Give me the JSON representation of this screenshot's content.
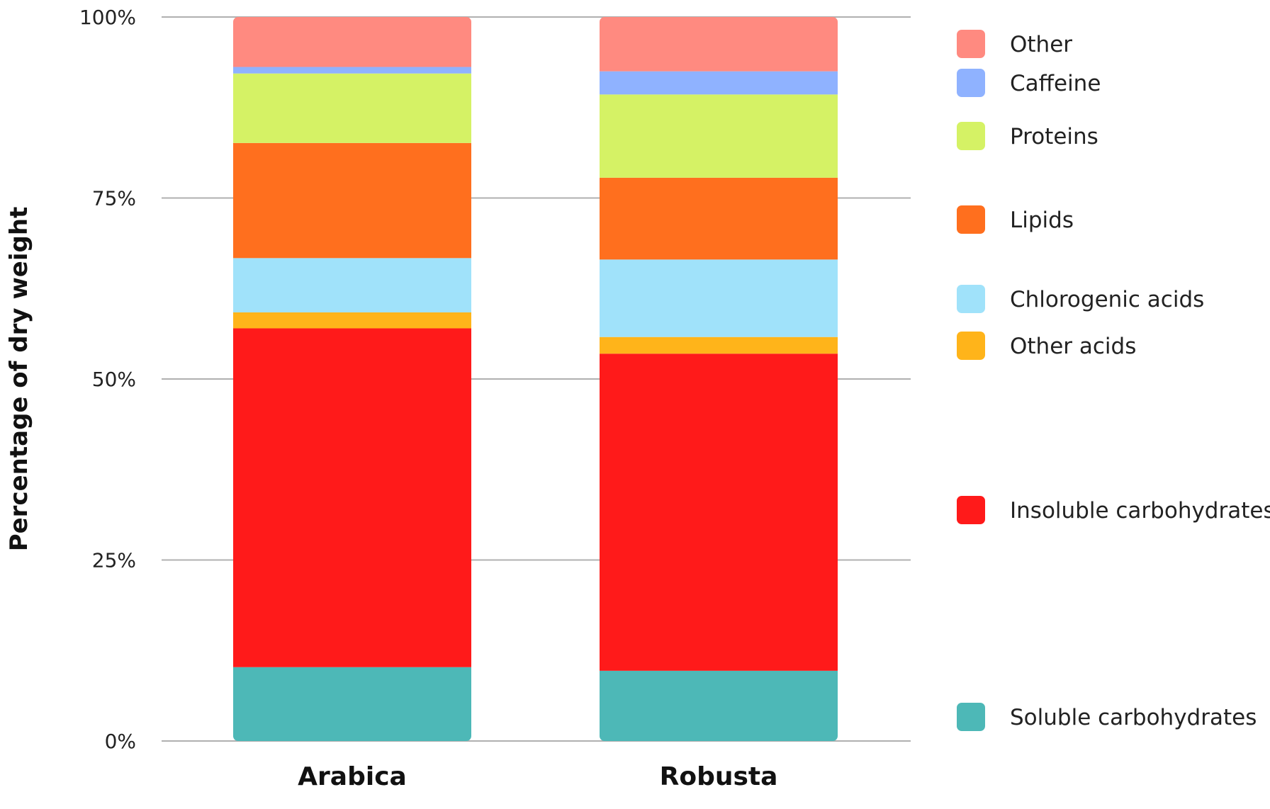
{
  "chart_data": {
    "type": "bar",
    "stacked": true,
    "categories": [
      "Arabica",
      "Robusta"
    ],
    "ylabel": "Percentage of dry weight",
    "xlabel": "",
    "ylim": [
      0,
      100
    ],
    "yticks": [
      0,
      25,
      50,
      75,
      100
    ],
    "ytick_labels": [
      "0%",
      "25%",
      "50%",
      "75%",
      "100%"
    ],
    "grid": true,
    "legend_position": "right",
    "series": [
      {
        "name": "Soluble carbohydrates",
        "color": "#4db8b7",
        "values": [
          10.2,
          9.7
        ]
      },
      {
        "name": "Insoluble carbohydrates",
        "color": "#ff1a1a",
        "values": [
          46.8,
          43.8
        ]
      },
      {
        "name": "Other acids",
        "color": "#ffb41a",
        "values": [
          2.2,
          2.3
        ]
      },
      {
        "name": "Chlorogenic acids",
        "color": "#a0e2fa",
        "values": [
          7.5,
          10.7
        ]
      },
      {
        "name": "Lipids",
        "color": "#ff6f1e",
        "values": [
          15.9,
          11.3
        ]
      },
      {
        "name": "Proteins",
        "color": "#d5f265",
        "values": [
          9.6,
          11.5
        ]
      },
      {
        "name": "Caffeine",
        "color": "#8fb2ff",
        "values": [
          0.9,
          3.2
        ]
      },
      {
        "name": "Other",
        "color": "#ff8a80",
        "values": [
          6.9,
          7.5
        ]
      }
    ]
  }
}
